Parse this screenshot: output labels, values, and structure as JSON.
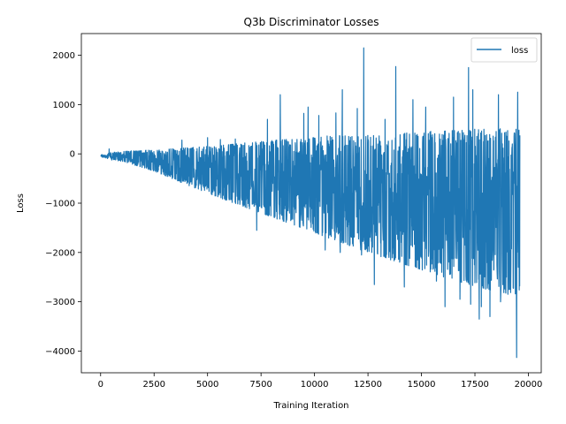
{
  "chart_data": {
    "type": "line",
    "title": "Q3b Discriminator Losses",
    "xlabel": "Training Iteration",
    "ylabel": "Loss",
    "xlim": [
      -900,
      20600
    ],
    "ylim": [
      -4440,
      2440
    ],
    "xticks": [
      0,
      2500,
      5000,
      7500,
      10000,
      12500,
      15000,
      17500,
      20000
    ],
    "xtick_labels": [
      "0",
      "2500",
      "5000",
      "7500",
      "10000",
      "12500",
      "15000",
      "17500",
      "20000"
    ],
    "yticks": [
      2000,
      1000,
      0,
      -1000,
      -2000,
      -3000,
      -4000
    ],
    "ytick_labels": [
      "2000",
      "1000",
      "0",
      "−1000",
      "−2000",
      "−3000",
      "−4000"
    ],
    "legend": {
      "position": "top-right",
      "entries": [
        "loss"
      ]
    },
    "grid": false,
    "color": "#1f77b4",
    "series": [
      {
        "name": "loss",
        "x_range": [
          0,
          19600
        ],
        "envelope": {
          "x": [
            0,
            1000,
            2500,
            5000,
            7500,
            10000,
            12500,
            15000,
            17500,
            19600
          ],
          "upper": [
            0,
            50,
            80,
            150,
            250,
            350,
            400,
            450,
            500,
            550
          ],
          "lower": [
            -100,
            -150,
            -350,
            -800,
            -1200,
            -1600,
            -2000,
            -2350,
            -2700,
            -2900
          ]
        },
        "spikes": [
          {
            "x": 400,
            "y": 100
          },
          {
            "x": 3800,
            "y": 280
          },
          {
            "x": 5000,
            "y": 330
          },
          {
            "x": 5600,
            "y": 290
          },
          {
            "x": 6300,
            "y": 300
          },
          {
            "x": 7300,
            "y": -1550
          },
          {
            "x": 7800,
            "y": 700
          },
          {
            "x": 8400,
            "y": 1200
          },
          {
            "x": 9500,
            "y": 820
          },
          {
            "x": 9700,
            "y": 950
          },
          {
            "x": 10200,
            "y": 780
          },
          {
            "x": 10500,
            "y": -1950
          },
          {
            "x": 11000,
            "y": 830
          },
          {
            "x": 11300,
            "y": 1300
          },
          {
            "x": 11200,
            "y": -2000
          },
          {
            "x": 12000,
            "y": 920
          },
          {
            "x": 12300,
            "y": 2150
          },
          {
            "x": 12200,
            "y": -2050
          },
          {
            "x": 12800,
            "y": -2650
          },
          {
            "x": 13300,
            "y": 700
          },
          {
            "x": 13800,
            "y": 1770
          },
          {
            "x": 14200,
            "y": -2700
          },
          {
            "x": 14600,
            "y": 1100
          },
          {
            "x": 15200,
            "y": 950
          },
          {
            "x": 15700,
            "y": -2580
          },
          {
            "x": 16100,
            "y": -3100
          },
          {
            "x": 16500,
            "y": 1150
          },
          {
            "x": 16800,
            "y": -2950
          },
          {
            "x": 17200,
            "y": 1750
          },
          {
            "x": 17400,
            "y": 1300
          },
          {
            "x": 17300,
            "y": -3050
          },
          {
            "x": 17700,
            "y": -3350
          },
          {
            "x": 17800,
            "y": -3100
          },
          {
            "x": 18200,
            "y": -3300
          },
          {
            "x": 18600,
            "y": 1200
          },
          {
            "x": 18700,
            "y": -3000
          },
          {
            "x": 19100,
            "y": -2750
          },
          {
            "x": 19450,
            "y": -4130
          },
          {
            "x": 19500,
            "y": 1250
          }
        ]
      }
    ]
  }
}
